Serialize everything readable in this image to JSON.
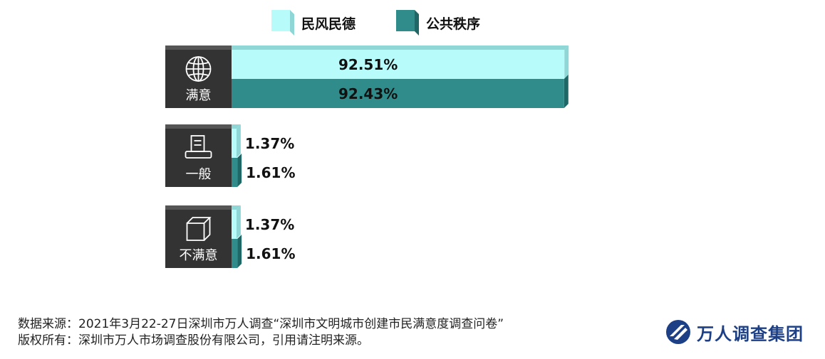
{
  "chart_data": {
    "type": "bar",
    "orientation": "horizontal",
    "categories": [
      "满意",
      "一般",
      "不满意"
    ],
    "category_icons": [
      "globe-icon",
      "printer-icon",
      "cube-icon"
    ],
    "series": [
      {
        "name": "民风民德",
        "values": [
          92.51,
          1.37,
          1.37
        ],
        "labels": [
          "92.51%",
          "1.37%",
          "1.37%"
        ],
        "color": "#b7fbfb"
      },
      {
        "name": "公共秩序",
        "values": [
          92.43,
          1.61,
          1.61
        ],
        "labels": [
          "92.43%",
          "1.61%",
          "1.61%"
        ],
        "color": "#2f8c8b"
      }
    ],
    "legend_position": "top",
    "grid": false
  },
  "footer": {
    "source": "数据来源：2021年3月22-27日深圳市万人调查“深圳市文明城市创建市民满意度调查问卷”",
    "copyright": "版权所有：深圳市万人市场调查股份有限公司，引用请注明来源。"
  },
  "logo": {
    "text": "万人调查集团"
  },
  "colors": {
    "label_box": "#333333",
    "series1_side": "#8fd6d6",
    "series2_side": "#1f6766"
  }
}
